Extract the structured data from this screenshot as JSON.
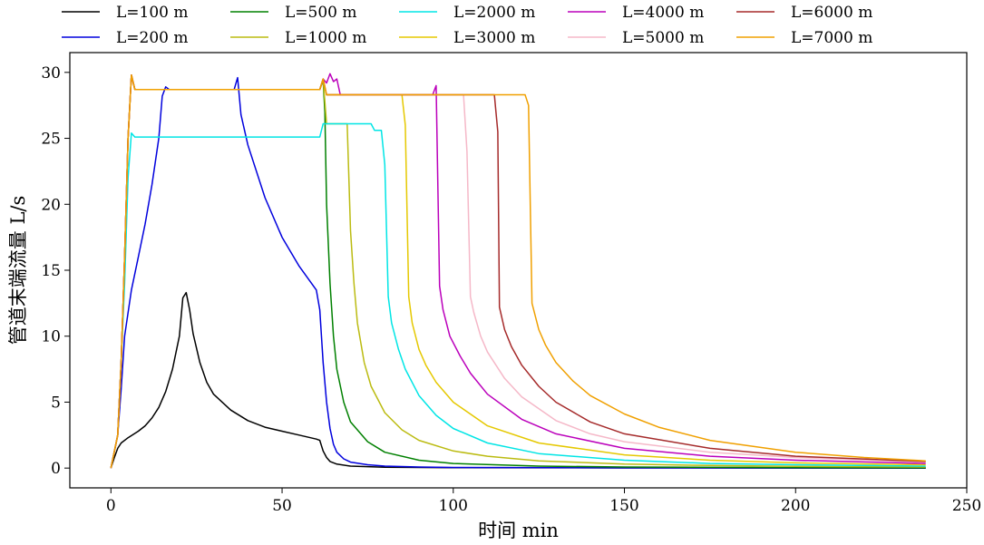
{
  "chart_data": {
    "type": "line",
    "title": "",
    "xlabel": "时间 min",
    "ylabel": "管道末端流量 L/s",
    "xlim": [
      -12,
      250
    ],
    "ylim": [
      -1.5,
      31.5
    ],
    "xticks": [
      0,
      50,
      100,
      150,
      200,
      250
    ],
    "yticks": [
      0,
      5,
      10,
      15,
      20,
      25,
      30
    ],
    "grid": false,
    "legend": "top",
    "series": [
      {
        "name": "L=100 m",
        "color": "#000000",
        "points": [
          [
            0,
            0
          ],
          [
            1,
            0.8
          ],
          [
            2,
            1.5
          ],
          [
            3,
            1.9
          ],
          [
            5,
            2.3
          ],
          [
            8,
            2.8
          ],
          [
            10,
            3.2
          ],
          [
            12,
            3.8
          ],
          [
            14,
            4.6
          ],
          [
            16,
            5.8
          ],
          [
            18,
            7.5
          ],
          [
            20,
            10
          ],
          [
            21,
            12.9
          ],
          [
            22,
            13.3
          ],
          [
            23,
            12
          ],
          [
            24,
            10.2
          ],
          [
            26,
            8
          ],
          [
            28,
            6.5
          ],
          [
            30,
            5.6
          ],
          [
            35,
            4.4
          ],
          [
            40,
            3.6
          ],
          [
            45,
            3.1
          ],
          [
            50,
            2.8
          ],
          [
            55,
            2.5
          ],
          [
            60,
            2.2
          ],
          [
            61,
            2.1
          ],
          [
            62,
            1.3
          ],
          [
            63,
            0.8
          ],
          [
            64,
            0.5
          ],
          [
            66,
            0.3
          ],
          [
            70,
            0.15
          ],
          [
            80,
            0.07
          ],
          [
            100,
            0.03
          ],
          [
            150,
            0.01
          ],
          [
            238,
            0
          ]
        ]
      },
      {
        "name": "L=200 m",
        "color": "#0000dd",
        "points": [
          [
            0,
            0
          ],
          [
            2,
            2.5
          ],
          [
            3,
            6
          ],
          [
            4,
            10
          ],
          [
            6,
            13.5
          ],
          [
            8,
            16
          ],
          [
            10,
            18.5
          ],
          [
            12,
            21.5
          ],
          [
            14,
            25
          ],
          [
            15,
            28.2
          ],
          [
            16,
            28.9
          ],
          [
            17,
            28.7
          ],
          [
            36,
            28.7
          ],
          [
            37,
            29.6
          ],
          [
            38,
            26.8
          ],
          [
            40,
            24.5
          ],
          [
            45,
            20.5
          ],
          [
            50,
            17.5
          ],
          [
            55,
            15.3
          ],
          [
            60,
            13.5
          ],
          [
            61,
            12
          ],
          [
            62,
            8
          ],
          [
            63,
            5
          ],
          [
            64,
            3
          ],
          [
            65,
            1.8
          ],
          [
            66,
            1.2
          ],
          [
            68,
            0.7
          ],
          [
            70,
            0.45
          ],
          [
            75,
            0.25
          ],
          [
            80,
            0.15
          ],
          [
            90,
            0.08
          ],
          [
            100,
            0.05
          ],
          [
            150,
            0.02
          ],
          [
            238,
            0.01
          ]
        ]
      },
      {
        "name": "L=500 m",
        "color": "#008000",
        "points": [
          [
            0,
            0
          ],
          [
            2,
            2.5
          ],
          [
            3,
            8
          ],
          [
            4,
            16
          ],
          [
            5,
            25
          ],
          [
            6,
            29.8
          ],
          [
            7,
            28.7
          ],
          [
            61,
            28.7
          ],
          [
            62,
            29.4
          ],
          [
            62.5,
            27
          ],
          [
            63,
            20
          ],
          [
            64,
            14
          ],
          [
            65,
            10
          ],
          [
            66,
            7.5
          ],
          [
            68,
            5
          ],
          [
            70,
            3.5
          ],
          [
            75,
            2
          ],
          [
            80,
            1.2
          ],
          [
            90,
            0.6
          ],
          [
            100,
            0.35
          ],
          [
            125,
            0.15
          ],
          [
            150,
            0.08
          ],
          [
            200,
            0.04
          ],
          [
            238,
            0.02
          ]
        ]
      },
      {
        "name": "L=1000 m",
        "color": "#bbbb11",
        "points": [
          [
            0,
            0
          ],
          [
            2,
            2.5
          ],
          [
            3,
            8
          ],
          [
            4,
            16
          ],
          [
            5,
            25
          ],
          [
            6,
            29.8
          ],
          [
            7,
            28.7
          ],
          [
            61,
            28.7
          ],
          [
            62,
            29.5
          ],
          [
            63,
            26.1
          ],
          [
            69,
            26.1
          ],
          [
            70,
            18
          ],
          [
            71,
            14
          ],
          [
            72,
            11
          ],
          [
            74,
            8
          ],
          [
            76,
            6.2
          ],
          [
            80,
            4.2
          ],
          [
            85,
            2.9
          ],
          [
            90,
            2.1
          ],
          [
            100,
            1.3
          ],
          [
            110,
            0.9
          ],
          [
            125,
            0.55
          ],
          [
            150,
            0.3
          ],
          [
            175,
            0.2
          ],
          [
            200,
            0.13
          ],
          [
            238,
            0.08
          ]
        ]
      },
      {
        "name": "L=2000 m",
        "color": "#00e5e5",
        "points": [
          [
            0,
            0
          ],
          [
            2,
            2.5
          ],
          [
            3,
            8
          ],
          [
            4,
            14
          ],
          [
            5,
            22
          ],
          [
            6,
            25.4
          ],
          [
            7,
            25.1
          ],
          [
            61,
            25.1
          ],
          [
            62,
            26.1
          ],
          [
            76,
            26.1
          ],
          [
            77,
            25.6
          ],
          [
            79,
            25.6
          ],
          [
            80,
            23
          ],
          [
            81,
            13
          ],
          [
            82,
            11
          ],
          [
            84,
            9
          ],
          [
            86,
            7.5
          ],
          [
            90,
            5.5
          ],
          [
            95,
            4
          ],
          [
            100,
            3
          ],
          [
            110,
            1.9
          ],
          [
            125,
            1.1
          ],
          [
            150,
            0.6
          ],
          [
            175,
            0.35
          ],
          [
            200,
            0.25
          ],
          [
            238,
            0.15
          ]
        ]
      },
      {
        "name": "L=3000 m",
        "color": "#e5c800",
        "points": [
          [
            0,
            0
          ],
          [
            2,
            2.5
          ],
          [
            3,
            8
          ],
          [
            4,
            16
          ],
          [
            5,
            25
          ],
          [
            6,
            29.8
          ],
          [
            7,
            28.7
          ],
          [
            61,
            28.7
          ],
          [
            62,
            29.5
          ],
          [
            63,
            28.3
          ],
          [
            85,
            28.3
          ],
          [
            86,
            26
          ],
          [
            87,
            13
          ],
          [
            88,
            11
          ],
          [
            90,
            9
          ],
          [
            92,
            7.8
          ],
          [
            95,
            6.5
          ],
          [
            100,
            5
          ],
          [
            110,
            3.2
          ],
          [
            125,
            1.9
          ],
          [
            150,
            1
          ],
          [
            175,
            0.6
          ],
          [
            200,
            0.4
          ],
          [
            238,
            0.25
          ]
        ]
      },
      {
        "name": "L=4000 m",
        "color": "#bb00bb",
        "points": [
          [
            0,
            0
          ],
          [
            2,
            2.5
          ],
          [
            3,
            8
          ],
          [
            4,
            16
          ],
          [
            5,
            25
          ],
          [
            6,
            29.8
          ],
          [
            7,
            28.7
          ],
          [
            61,
            28.7
          ],
          [
            62,
            29.5
          ],
          [
            63,
            29.2
          ],
          [
            64,
            29.9
          ],
          [
            65,
            29.3
          ],
          [
            66,
            29.5
          ],
          [
            67,
            28.3
          ],
          [
            94,
            28.3
          ],
          [
            95,
            29
          ],
          [
            96,
            13.8
          ],
          [
            97,
            12
          ],
          [
            99,
            10
          ],
          [
            102,
            8.5
          ],
          [
            105,
            7.2
          ],
          [
            110,
            5.6
          ],
          [
            120,
            3.7
          ],
          [
            130,
            2.6
          ],
          [
            150,
            1.5
          ],
          [
            175,
            0.9
          ],
          [
            200,
            0.6
          ],
          [
            238,
            0.35
          ]
        ]
      },
      {
        "name": "L=5000 m",
        "color": "#f5b8c8",
        "points": [
          [
            0,
            0
          ],
          [
            2,
            2.5
          ],
          [
            3,
            8
          ],
          [
            4,
            16
          ],
          [
            5,
            25
          ],
          [
            6,
            29.8
          ],
          [
            7,
            28.7
          ],
          [
            61,
            28.7
          ],
          [
            62,
            29.5
          ],
          [
            63,
            28.3
          ],
          [
            103,
            28.3
          ],
          [
            104,
            24
          ],
          [
            105,
            13
          ],
          [
            106,
            11.8
          ],
          [
            108,
            10
          ],
          [
            110,
            8.8
          ],
          [
            115,
            6.8
          ],
          [
            120,
            5.4
          ],
          [
            130,
            3.6
          ],
          [
            140,
            2.6
          ],
          [
            150,
            2
          ],
          [
            175,
            1.2
          ],
          [
            200,
            0.8
          ],
          [
            238,
            0.45
          ]
        ]
      },
      {
        "name": "L=6000 m",
        "color": "#a52a2a",
        "points": [
          [
            0,
            0
          ],
          [
            2,
            2.5
          ],
          [
            3,
            8
          ],
          [
            4,
            16
          ],
          [
            5,
            25
          ],
          [
            6,
            29.8
          ],
          [
            7,
            28.7
          ],
          [
            61,
            28.7
          ],
          [
            62,
            29.5
          ],
          [
            63,
            28.3
          ],
          [
            112,
            28.3
          ],
          [
            113,
            25.5
          ],
          [
            113.5,
            12.2
          ],
          [
            115,
            10.5
          ],
          [
            117,
            9.2
          ],
          [
            120,
            7.8
          ],
          [
            125,
            6.2
          ],
          [
            130,
            5
          ],
          [
            140,
            3.5
          ],
          [
            150,
            2.6
          ],
          [
            175,
            1.5
          ],
          [
            200,
            0.9
          ],
          [
            238,
            0.5
          ]
        ]
      },
      {
        "name": "L=7000 m",
        "color": "#f0a000",
        "points": [
          [
            0,
            0
          ],
          [
            2,
            2.5
          ],
          [
            3,
            8
          ],
          [
            4,
            16
          ],
          [
            5,
            25
          ],
          [
            6,
            29.8
          ],
          [
            7,
            28.7
          ],
          [
            61,
            28.7
          ],
          [
            62,
            29.5
          ],
          [
            63,
            28.3
          ],
          [
            121,
            28.3
          ],
          [
            122,
            27.5
          ],
          [
            123,
            12.5
          ],
          [
            125,
            10.5
          ],
          [
            127,
            9.3
          ],
          [
            130,
            8
          ],
          [
            135,
            6.6
          ],
          [
            140,
            5.5
          ],
          [
            150,
            4.1
          ],
          [
            160,
            3.1
          ],
          [
            175,
            2.1
          ],
          [
            200,
            1.2
          ],
          [
            220,
            0.8
          ],
          [
            238,
            0.55
          ]
        ]
      }
    ]
  }
}
